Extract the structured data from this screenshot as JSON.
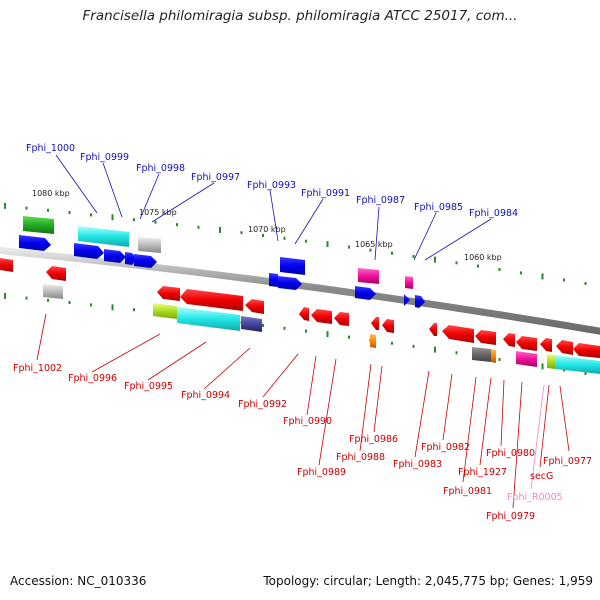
{
  "title": "Francisella philomiragia subsp. philomiragia ATCC 25017, com...",
  "accession_text": "Accession: NC_010336",
  "genome_info_text": "Topology: circular; Length: 2,045,775 bp; Genes: 1,959",
  "colors": {
    "forward_label": "#1010b0",
    "reverse_label": "#cc0000",
    "rna_label": "#ee88cc",
    "backbone": "#888888",
    "tick": "#2a8a2a"
  },
  "scale_labels": [
    "1080 kbp",
    "1075 kbp",
    "1070 kbp",
    "1065 kbp",
    "1060 kbp"
  ],
  "forward_gene_labels": [
    "Fphi_1000",
    "Fphi_0999",
    "Fphi_0998",
    "Fphi_0997",
    "Fphi_0993",
    "Fphi_0991",
    "Fphi_0987",
    "Fphi_0985",
    "Fphi_0984"
  ],
  "reverse_gene_labels": [
    "Fphi_1002",
    "Fphi_0996",
    "Fphi_0995",
    "Fphi_0994",
    "Fphi_0992",
    "Fphi_0990",
    "Fphi_0989",
    "Fphi_0988",
    "Fphi_0986",
    "Fphi_0983",
    "Fphi_0982",
    "Fphi_0981",
    "Fphi_1927",
    "Fphi_0980",
    "Fphi_0979",
    "secG",
    "Fphi_0977"
  ],
  "rna_gene_labels": [
    "Fphi_R0005"
  ]
}
